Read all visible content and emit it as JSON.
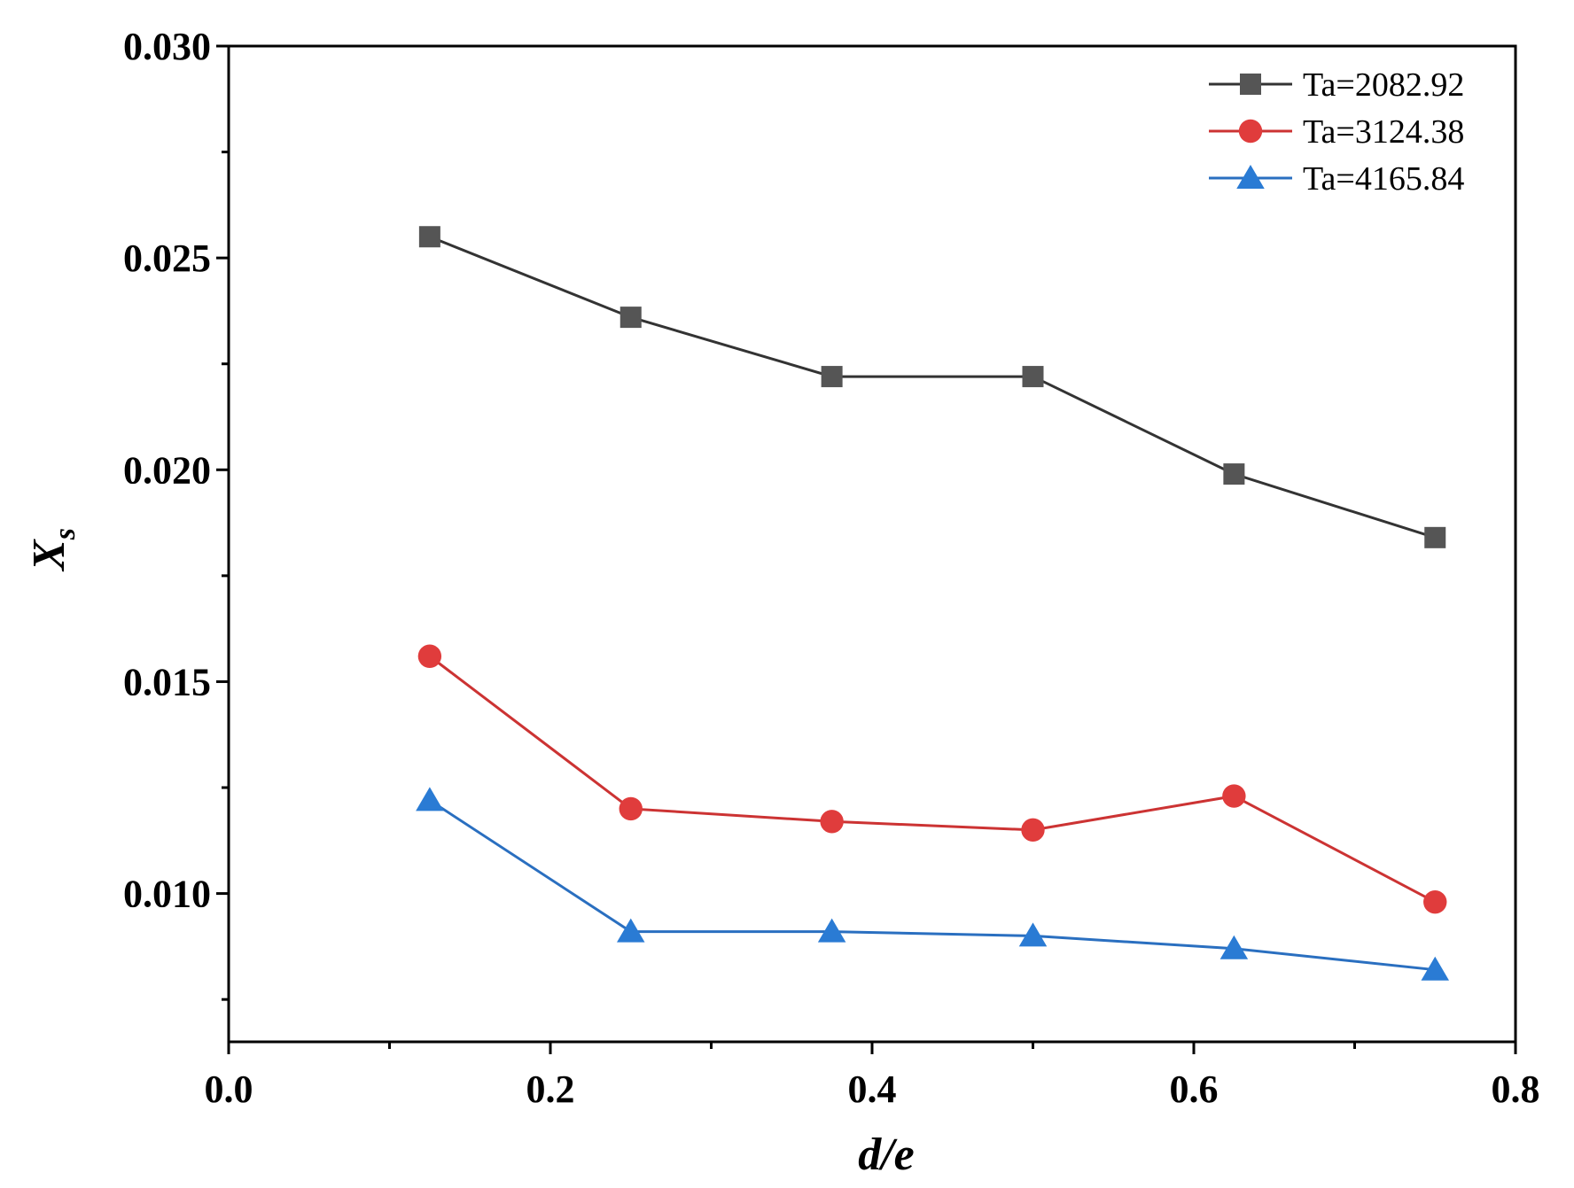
{
  "chart_data": {
    "type": "line",
    "title": "",
    "xlabel": "d/e",
    "ylabel": "X",
    "ylabel_subscript": "s",
    "xlim": [
      0.0,
      0.8
    ],
    "ylim": [
      0.0065,
      0.03
    ],
    "x_ticks": [
      0.0,
      0.2,
      0.4,
      0.6,
      0.8
    ],
    "x_tick_labels": [
      "0.0",
      "0.2",
      "0.4",
      "0.6",
      "0.8"
    ],
    "y_ticks": [
      0.01,
      0.015,
      0.02,
      0.025,
      0.03
    ],
    "y_tick_labels": [
      "0.010",
      "0.015",
      "0.020",
      "0.025",
      "0.030"
    ],
    "grid": false,
    "legend_position": "top-right",
    "x": [
      0.125,
      0.25,
      0.375,
      0.5,
      0.625,
      0.75
    ],
    "series": [
      {
        "name": "Ta=2082.92",
        "color": "#555555",
        "line_color": "#333333",
        "marker": "square",
        "values": [
          0.0255,
          0.0236,
          0.0222,
          0.0222,
          0.0199,
          0.0184
        ]
      },
      {
        "name": "Ta=3124.38",
        "color": "#e03c3c",
        "line_color": "#cc3333",
        "marker": "circle",
        "values": [
          0.0156,
          0.012,
          0.0117,
          0.0115,
          0.0123,
          0.0098
        ]
      },
      {
        "name": "Ta=4165.84",
        "color": "#2a7bd4",
        "line_color": "#2a6fc0",
        "marker": "triangle",
        "values": [
          0.0122,
          0.0091,
          0.0091,
          0.009,
          0.0087,
          0.0082
        ]
      }
    ]
  }
}
